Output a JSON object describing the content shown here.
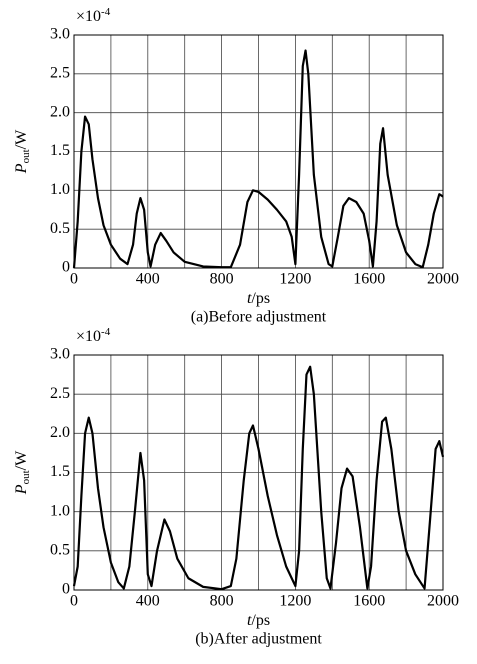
{
  "chart_data": [
    {
      "type": "line",
      "caption": "(a)Before adjustment",
      "exponent": {
        "base": "×10",
        "power": "-4"
      },
      "ylabel": [
        "P",
        "out",
        "/W"
      ],
      "xlabel": [
        "t",
        "/ps"
      ],
      "xlim": [
        0,
        2000
      ],
      "xticks": [
        0,
        400,
        800,
        1200,
        1600,
        2000
      ],
      "minor_xticks": [
        200,
        600,
        1000,
        1400,
        1800
      ],
      "ylim": [
        0,
        3
      ],
      "yticks": [
        0,
        0.5,
        {
          "value": 1,
          "label": "1.0"
        },
        1.5,
        {
          "value": 2,
          "label": "2.0"
        },
        2.5,
        {
          "value": 3,
          "label": "3.0"
        }
      ],
      "grid": true,
      "series": [
        {
          "color": "#000000",
          "x": [
            0,
            20,
            40,
            60,
            80,
            100,
            130,
            160,
            200,
            250,
            290,
            320,
            340,
            360,
            380,
            400,
            415,
            440,
            470,
            500,
            540,
            600,
            700,
            800,
            850,
            900,
            940,
            970,
            1000,
            1050,
            1100,
            1150,
            1180,
            1200,
            1220,
            1240,
            1255,
            1270,
            1300,
            1340,
            1380,
            1400,
            1430,
            1460,
            1490,
            1530,
            1570,
            1600,
            1620,
            1640,
            1660,
            1675,
            1700,
            1750,
            1800,
            1850,
            1890,
            1920,
            1950,
            1980,
            2000
          ],
          "values": [
            0,
            0.6,
            1.5,
            1.95,
            1.85,
            1.4,
            0.9,
            0.55,
            0.3,
            0.12,
            0.05,
            0.3,
            0.7,
            0.9,
            0.75,
            0.2,
            0.02,
            0.3,
            0.45,
            0.35,
            0.2,
            0.08,
            0.02,
            0.01,
            0.01,
            0.3,
            0.85,
            1.0,
            0.98,
            0.88,
            0.75,
            0.6,
            0.4,
            0.05,
            1.2,
            2.6,
            2.8,
            2.5,
            1.2,
            0.4,
            0.05,
            0.02,
            0.4,
            0.8,
            0.9,
            0.85,
            0.7,
            0.35,
            0.02,
            0.6,
            1.6,
            1.8,
            1.2,
            0.55,
            0.2,
            0.05,
            0.01,
            0.3,
            0.7,
            0.95,
            0.92
          ]
        }
      ]
    },
    {
      "type": "line",
      "caption": "(b)After adjustment",
      "exponent": {
        "base": "×10",
        "power": "-4"
      },
      "ylabel": [
        "P",
        "out",
        "/W"
      ],
      "xlabel": [
        "t",
        "/ps"
      ],
      "xlim": [
        0,
        2000
      ],
      "xticks": [
        0,
        400,
        800,
        1200,
        1600,
        2000
      ],
      "minor_xticks": [
        200,
        600,
        1000,
        1400,
        1800
      ],
      "ylim": [
        0,
        3
      ],
      "yticks": [
        0,
        0.5,
        {
          "value": 1,
          "label": "1.0"
        },
        1.5,
        {
          "value": 2,
          "label": "2.0"
        },
        2.5,
        {
          "value": 3,
          "label": "3.0"
        }
      ],
      "grid": true,
      "series": [
        {
          "color": "#000000",
          "x": [
            0,
            20,
            40,
            60,
            80,
            100,
            130,
            160,
            200,
            240,
            270,
            300,
            330,
            360,
            380,
            400,
            420,
            450,
            490,
            520,
            560,
            620,
            700,
            800,
            850,
            880,
            920,
            950,
            970,
            1000,
            1050,
            1100,
            1150,
            1200,
            1220,
            1240,
            1260,
            1280,
            1300,
            1340,
            1370,
            1390,
            1420,
            1450,
            1480,
            1510,
            1550,
            1590,
            1610,
            1640,
            1670,
            1690,
            1720,
            1760,
            1800,
            1850,
            1900,
            1930,
            1960,
            1980,
            2000
          ],
          "values": [
            0.05,
            0.3,
            1.2,
            2.0,
            2.2,
            2.0,
            1.3,
            0.8,
            0.35,
            0.1,
            0.02,
            0.3,
            1.0,
            1.75,
            1.4,
            0.2,
            0.05,
            0.5,
            0.9,
            0.75,
            0.4,
            0.15,
            0.04,
            0.01,
            0.05,
            0.4,
            1.4,
            2.0,
            2.1,
            1.8,
            1.2,
            0.7,
            0.3,
            0.05,
            0.5,
            1.8,
            2.75,
            2.85,
            2.5,
            1.0,
            0.15,
            0.02,
            0.6,
            1.3,
            1.55,
            1.45,
            0.8,
            0.02,
            0.3,
            1.4,
            2.15,
            2.2,
            1.8,
            1.0,
            0.5,
            0.2,
            0.02,
            0.9,
            1.8,
            1.9,
            1.7
          ]
        }
      ]
    }
  ]
}
